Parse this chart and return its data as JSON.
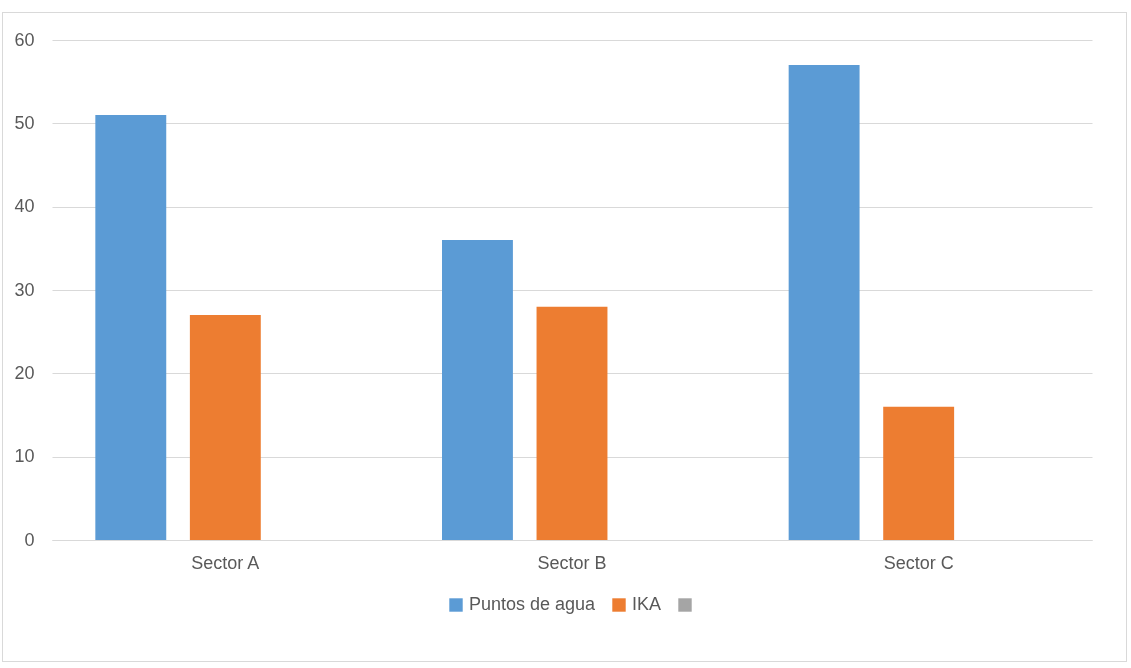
{
  "chart_data": {
    "type": "bar",
    "categories": [
      "Sector A",
      "Sector B",
      "Sector C"
    ],
    "series": [
      {
        "name": "Puntos de agua",
        "color": "#5b9bd5",
        "values": [
          51,
          36,
          57
        ]
      },
      {
        "name": "IKA",
        "color": "#ed7d31",
        "values": [
          27,
          28,
          16
        ]
      },
      {
        "color": "#a5a5a5",
        "values": [
          null,
          null,
          null
        ]
      }
    ],
    "ylim": [
      0,
      60
    ],
    "yticks": [
      0,
      10,
      20,
      30,
      40,
      50,
      60
    ],
    "grid": "y",
    "legend": "bottom"
  }
}
